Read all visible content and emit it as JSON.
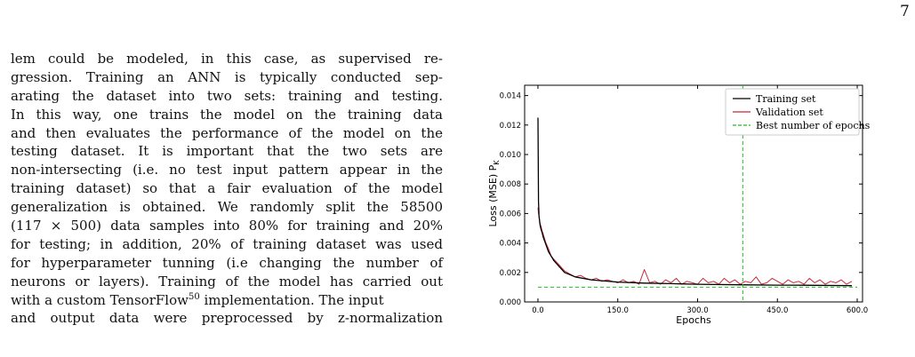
{
  "page": {
    "number": "7"
  },
  "body_text": {
    "lines": [
      "lem could be modeled, in this case, as supervised re-",
      "gression. Training an ANN is typically conducted sep-",
      "arating the dataset into two sets: training and testing.",
      "In this way, one trains the model on the training data",
      "and then evaluates the performance of the model on the",
      "testing dataset. It is important that the two sets are",
      "non-intersecting (i.e. no test input pattern appear in the",
      "training dataset) so that a fair evaluation of the model",
      "generalization is obtained. We randomly split the 58500",
      "(117 × 500) data samples into 80% for training and 20%",
      "for testing; in addition, 20% of training dataset was used",
      "for hyperparameter tunning (i.e changing the number of",
      "neurons or layers). Training of the model has carried out",
      "with a custom TensorFlow",
      "and output data were preprocessed by z-normalization"
    ],
    "superscript": "50",
    "after_superscript": " implementation. The input"
  },
  "chart_data": {
    "type": "line",
    "title": "",
    "xlabel": "Epochs",
    "ylabel": "Loss (MSE) P",
    "ylabel_subscript": "K",
    "xlim": [
      -25,
      610
    ],
    "ylim": [
      0.0,
      0.0147
    ],
    "xticks": [
      0,
      150,
      300,
      450,
      600
    ],
    "xtick_labels": [
      "0.0",
      "150.0",
      "300.0",
      "450.0",
      "600.0"
    ],
    "yticks": [
      0.0,
      0.002,
      0.004,
      0.006,
      0.008,
      0.01,
      0.012,
      0.014
    ],
    "ytick_labels": [
      "0.000",
      "0.002",
      "0.004",
      "0.006",
      "0.008",
      "0.010",
      "0.012",
      "0.014"
    ],
    "grid": false,
    "legend_position": "top-right",
    "series": [
      {
        "name": "Training set",
        "color": "#000000",
        "x": [
          0,
          1,
          2,
          4,
          6,
          8,
          10,
          15,
          20,
          30,
          40,
          50,
          70,
          100,
          150,
          200,
          250,
          300,
          380,
          450,
          500,
          590
        ],
        "y": [
          0.0125,
          0.0068,
          0.0058,
          0.0052,
          0.0049,
          0.0047,
          0.0044,
          0.0039,
          0.0034,
          0.0028,
          0.0024,
          0.002,
          0.0017,
          0.0015,
          0.00135,
          0.00128,
          0.00124,
          0.0012,
          0.00116,
          0.00114,
          0.00113,
          0.0011
        ]
      },
      {
        "name": "Validation set",
        "color": "#c8283c",
        "x": [
          0,
          1,
          2,
          4,
          6,
          8,
          10,
          15,
          20,
          25,
          30,
          40,
          50,
          60,
          70,
          80,
          90,
          100,
          110,
          120,
          130,
          140,
          150,
          160,
          170,
          180,
          190,
          200,
          210,
          220,
          230,
          240,
          250,
          260,
          270,
          280,
          290,
          300,
          310,
          320,
          330,
          340,
          350,
          360,
          370,
          380,
          390,
          400,
          410,
          420,
          430,
          440,
          450,
          460,
          470,
          480,
          490,
          500,
          510,
          520,
          530,
          540,
          550,
          560,
          570,
          580,
          590
        ],
        "y": [
          0.0064,
          0.006,
          0.0058,
          0.0053,
          0.0051,
          0.0048,
          0.0046,
          0.004,
          0.0036,
          0.0031,
          0.0029,
          0.0025,
          0.0021,
          0.0019,
          0.0017,
          0.0018,
          0.0016,
          0.0015,
          0.0016,
          0.0014,
          0.0015,
          0.0014,
          0.0013,
          0.0015,
          0.0013,
          0.0014,
          0.0012,
          0.0022,
          0.0013,
          0.0014,
          0.0012,
          0.0015,
          0.0013,
          0.0016,
          0.0012,
          0.0014,
          0.0013,
          0.0012,
          0.0016,
          0.0013,
          0.0014,
          0.0012,
          0.0016,
          0.0013,
          0.0015,
          0.0012,
          0.0014,
          0.0013,
          0.0017,
          0.0012,
          0.0013,
          0.0016,
          0.0014,
          0.0012,
          0.0015,
          0.0013,
          0.0014,
          0.0012,
          0.0016,
          0.0013,
          0.0015,
          0.0012,
          0.0014,
          0.0013,
          0.0015,
          0.0012,
          0.0014
        ]
      }
    ],
    "reference_lines": [
      {
        "name": "Best number of epochs",
        "color": "#22bb22",
        "style": "dashed",
        "vertical_x": 385,
        "horizontal_y": 0.001
      }
    ]
  }
}
